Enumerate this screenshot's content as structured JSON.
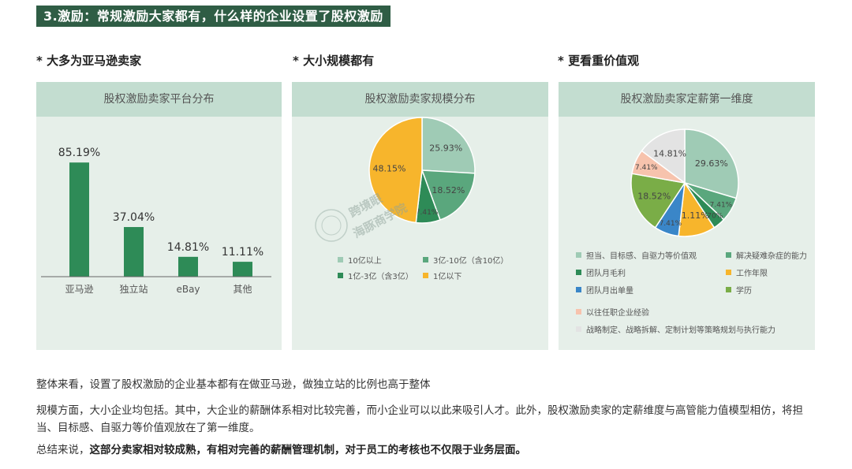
{
  "header": {
    "title": "3.激励：常规激励大家都有，什么样的企业设置了股权激励"
  },
  "sections": [
    {
      "subtitle": "* 大多为亚马逊卖家"
    },
    {
      "subtitle": "* 大小规模都有"
    },
    {
      "subtitle": "* 更看重价值观"
    }
  ],
  "watermark": {
    "line1": "跨境眼",
    "line2": "海豚商学院"
  },
  "paragraphs": {
    "p1": "整体来看，设置了股权激励的企业基本都有在做亚马逊，做独立站的比例也高于整体",
    "p2": "规模方面，大小企业均包括。其中，大企业的薪酬体系相对比较完善，而小企业可以以此来吸引人才。此外，股权激励卖家的定薪维度与高管能力值模型相仿，将担当、目标感、自驱力等价值观放在了第一维度。",
    "p3_prefix": "总结来说，",
    "p3_bold": "这部分卖家相对较成熟，有相对完善的薪酬管理机制，对于员工的考核也不仅限于业务层面。"
  },
  "chart_data": [
    {
      "type": "bar",
      "title": "股权激励卖家平台分布",
      "categories": [
        "亚马逊",
        "独立站",
        "eBay",
        "其他"
      ],
      "values": [
        85.19,
        37.04,
        14.81,
        11.11
      ],
      "value_labels": [
        "85.19%",
        "37.04%",
        "14.81%",
        "11.11%"
      ],
      "ylim": [
        0,
        100
      ],
      "color": "#2e8b57",
      "grid": false
    },
    {
      "type": "pie",
      "title": "股权激励卖家规模分布",
      "slices": [
        {
          "label": "10亿以上",
          "value": 25.93,
          "display": "25.93%",
          "color": "#9fcbb5"
        },
        {
          "label": "3亿-10亿（含10亿）",
          "value": 18.52,
          "display": "18.52%",
          "color": "#5aa77d"
        },
        {
          "label": "1亿-3亿（含3亿）",
          "value": 7.41,
          "display": "7.41%",
          "color": "#2e8b57"
        },
        {
          "label": "1亿以下",
          "value": 48.15,
          "display": "48.15%",
          "color": "#f7b52c"
        }
      ],
      "legend_position": "bottom"
    },
    {
      "type": "pie",
      "title": "股权激励卖家定薪第一维度",
      "slices": [
        {
          "label": "担当、目标感、自驱力等价值观",
          "value": 29.63,
          "display": "29.63%",
          "color": "#9fcbb5"
        },
        {
          "label": "解决疑难杂症的能力",
          "value": 7.41,
          "display": "7.41%",
          "color": "#5aa77d"
        },
        {
          "label": "团队月毛利",
          "value": 3.7,
          "display": "3.70%",
          "color": "#2e8b57"
        },
        {
          "label": "工作年限",
          "value": 11.11,
          "display": "11.11%",
          "color": "#f7b52c"
        },
        {
          "label": "团队月出单量",
          "value": 7.41,
          "display": "7.41%",
          "color": "#3a86c8"
        },
        {
          "label": "学历",
          "value": 18.52,
          "display": "18.52%",
          "color": "#7aad47"
        },
        {
          "label": "以往任职企业经验",
          "value": 7.41,
          "display": "7.41%",
          "color": "#f7c3ad"
        },
        {
          "label": "战略制定、战略拆解、定制计划等策略规划与执行能力",
          "value": 14.81,
          "display": "14.81%",
          "color": "#e3e3e3"
        }
      ],
      "legend_position": "bottom"
    }
  ]
}
